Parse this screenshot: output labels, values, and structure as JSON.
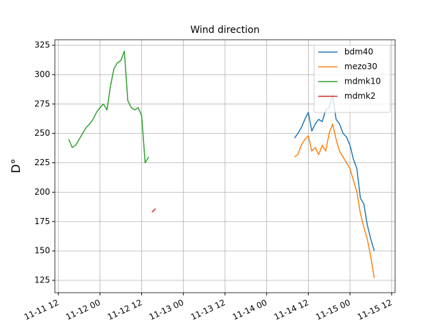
{
  "chart_data": {
    "type": "line",
    "title": "Wind direction",
    "y_label": "D°",
    "xlim": [
      "11-11 11",
      "11-15 13"
    ],
    "xticks": [
      "11-11 12",
      "11-12 00",
      "11-12 12",
      "11-13 00",
      "11-13 12",
      "11-14 00",
      "11-14 12",
      "11-15 00",
      "11-15 12"
    ],
    "ylim": [
      114.5,
      329.7
    ],
    "yticks": [
      125,
      150,
      175,
      200,
      225,
      250,
      275,
      300,
      325
    ],
    "grid": true,
    "legend": "upper right",
    "series": [
      {
        "name": "bdm40",
        "color": "#1f77b4",
        "x": [
          "11-14 08",
          "11-14 09",
          "11-14 10",
          "11-14 11",
          "11-14 12",
          "11-14 13",
          "11-14 14",
          "11-14 15",
          "11-14 16",
          "11-14 17",
          "11-14 18",
          "11-14 19",
          "11-14 20",
          "11-14 21",
          "11-14 22",
          "11-14 23",
          "11-15 00",
          "11-15 01",
          "11-15 02",
          "11-15 03",
          "11-15 04",
          "11-15 05",
          "11-15 06",
          "11-15 07"
        ],
        "values": [
          246,
          250,
          255,
          262,
          268,
          252,
          258,
          262,
          260,
          270,
          272,
          283,
          262,
          258,
          250,
          247,
          240,
          228,
          220,
          195,
          190,
          172,
          160,
          150
        ]
      },
      {
        "name": "mezo30",
        "color": "#ff7f0e",
        "x": [
          "11-14 08",
          "11-14 09",
          "11-14 10",
          "11-14 11",
          "11-14 12",
          "11-14 13",
          "11-14 14",
          "11-14 15",
          "11-14 16",
          "11-14 17",
          "11-14 18",
          "11-14 19",
          "11-14 20",
          "11-14 21",
          "11-14 22",
          "11-14 23",
          "11-15 00",
          "11-15 01",
          "11-15 02",
          "11-15 03",
          "11-15 04",
          "11-15 05",
          "11-15 06",
          "11-15 07"
        ],
        "values": [
          230,
          232,
          240,
          245,
          248,
          235,
          238,
          232,
          240,
          235,
          250,
          258,
          245,
          235,
          230,
          225,
          220,
          210,
          200,
          182,
          170,
          160,
          145,
          127
        ]
      },
      {
        "name": "mdmk10",
        "color": "#2ca02c",
        "x": [
          "11-11 15",
          "11-11 16",
          "11-11 17",
          "11-11 18",
          "11-11 19",
          "11-11 20",
          "11-11 21",
          "11-11 22",
          "11-11 23",
          "11-12 00",
          "11-12 01",
          "11-12 02",
          "11-12 03",
          "11-12 04",
          "11-12 05",
          "11-12 06",
          "11-12 07",
          "11-12 08",
          "11-12 09",
          "11-12 10",
          "11-12 11",
          "11-12 12",
          "11-12 13",
          "11-12 14"
        ],
        "values": [
          245,
          238,
          240,
          245,
          250,
          255,
          258,
          262,
          268,
          272,
          275,
          270,
          290,
          305,
          310,
          312,
          320,
          278,
          272,
          270,
          272,
          265,
          225,
          230
        ]
      },
      {
        "name": "mdmk2",
        "color": "#d62728",
        "x": [
          "11-12 15",
          "11-12 16"
        ],
        "values": [
          183,
          186
        ]
      }
    ]
  }
}
